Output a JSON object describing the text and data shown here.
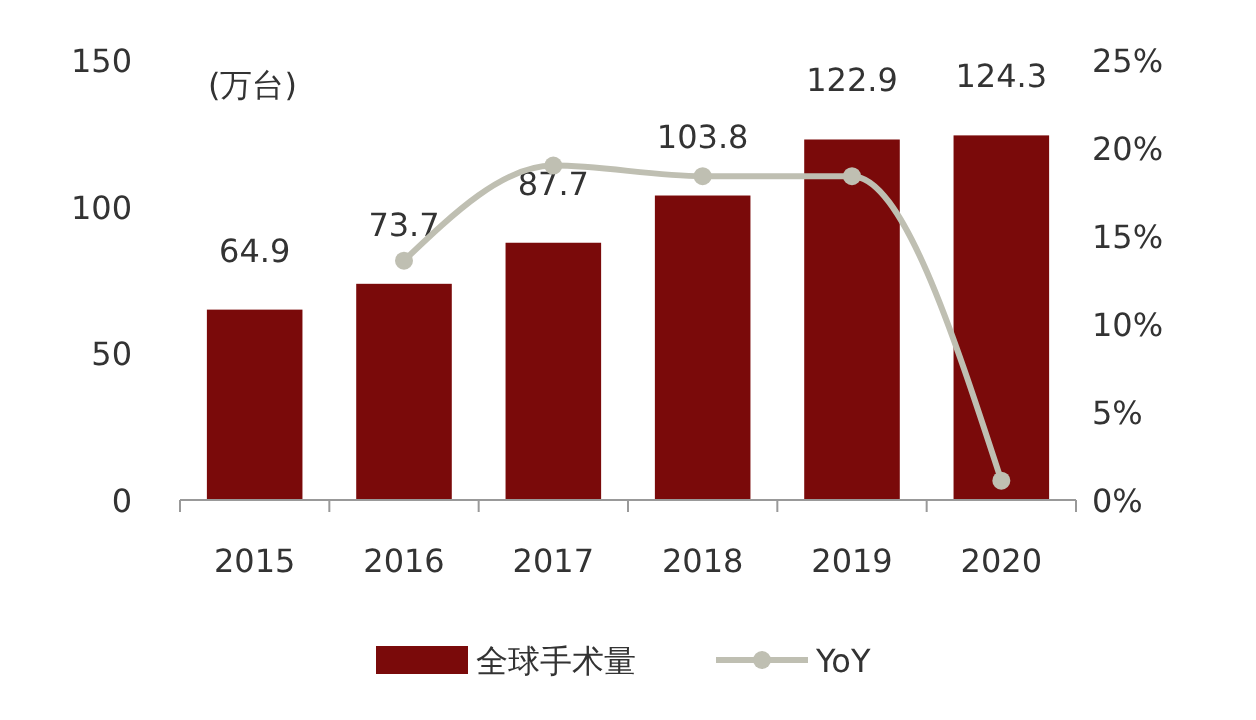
{
  "chart_data": {
    "type": "bar",
    "ylabel": "(万台)",
    "categories": [
      "2015",
      "2016",
      "2017",
      "2018",
      "2019",
      "2020"
    ],
    "series": [
      {
        "name": "全球手术量",
        "color": "#7a0a0a",
        "values": [
          64.9,
          73.7,
          87.7,
          103.8,
          122.9,
          124.3
        ],
        "value_labels": [
          "64.9",
          "73.7",
          "87.7",
          "103.8",
          "122.9",
          "124.3"
        ]
      },
      {
        "name": "YoY",
        "type": "line",
        "axis": "y2",
        "color": "#bfbfb2",
        "values": [
          null,
          13.6,
          19.0,
          18.4,
          18.4,
          1.1
        ],
        "marker": "circle"
      }
    ],
    "ylim": [
      0,
      150
    ],
    "yticks": [
      0,
      50,
      100,
      150
    ],
    "y2lim": [
      0,
      25
    ],
    "y2ticks": [
      {
        "value": 0,
        "label": "0%"
      },
      {
        "value": 5,
        "label": "5%"
      },
      {
        "value": 10,
        "label": "10%"
      },
      {
        "value": 15,
        "label": "15%"
      },
      {
        "value": 20,
        "label": "20%"
      },
      {
        "value": 25,
        "label": "25%"
      }
    ],
    "legend": "bottom",
    "grid": false
  }
}
